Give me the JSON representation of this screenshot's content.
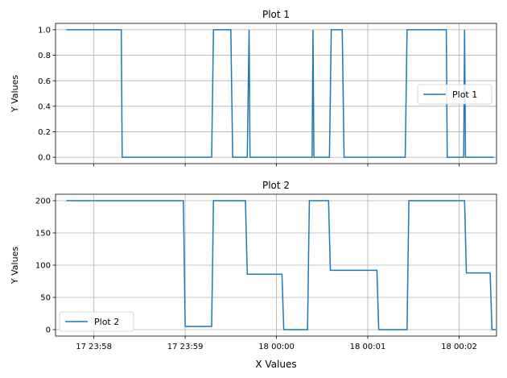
{
  "xlabel": "X Values",
  "colors": {
    "series": "#1f77b4",
    "grid": "#b0b0b0",
    "axes": "#000000"
  },
  "chart_data": [
    {
      "type": "line",
      "title": "Plot 1",
      "xlabel": "",
      "ylabel": "Y Values",
      "grid": true,
      "legend_position": "center-right",
      "xlim": [
        "17 23:57.58",
        "18 00:02.41"
      ],
      "ylim": [
        -0.05,
        1.05
      ],
      "x_ticks": [
        {
          "t": "17 23:58",
          "label": ""
        },
        {
          "t": "17 23:59",
          "label": ""
        },
        {
          "t": "18 00:00",
          "label": ""
        },
        {
          "t": "18 00:01",
          "label": ""
        },
        {
          "t": "18 00:02",
          "label": ""
        }
      ],
      "y_ticks": [
        0.0,
        0.2,
        0.4,
        0.6,
        0.8,
        1.0
      ],
      "y_tick_labels": [
        "0.0",
        "0.2",
        "0.4",
        "0.6",
        "0.8",
        "1.0"
      ],
      "series": [
        {
          "name": "Plot 1",
          "points": [
            {
              "t": "17 23:57.70",
              "y": 1
            },
            {
              "t": "17 23:58.30",
              "y": 1
            },
            {
              "t": "17 23:58.31",
              "y": 0
            },
            {
              "t": "17 23:59.29",
              "y": 0
            },
            {
              "t": "17 23:59.31",
              "y": 1
            },
            {
              "t": "17 23:59.50",
              "y": 1
            },
            {
              "t": "17 23:59.52",
              "y": 0
            },
            {
              "t": "17 23:59.68",
              "y": 0
            },
            {
              "t": "17 23:59.70",
              "y": 1
            },
            {
              "t": "17 23:59.71",
              "y": 0
            },
            {
              "t": "18 00:00.39",
              "y": 0
            },
            {
              "t": "18 00:00.40",
              "y": 1
            },
            {
              "t": "18 00:00.41",
              "y": 0
            },
            {
              "t": "18 00:00.58",
              "y": 0
            },
            {
              "t": "18 00:00.60",
              "y": 1
            },
            {
              "t": "18 00:00.72",
              "y": 1
            },
            {
              "t": "18 00:00.74",
              "y": 0
            },
            {
              "t": "18 00:01.41",
              "y": 0
            },
            {
              "t": "18 00:01.43",
              "y": 1
            },
            {
              "t": "18 00:01.86",
              "y": 1
            },
            {
              "t": "18 00:01.87",
              "y": 0
            },
            {
              "t": "18 00:02.05",
              "y": 0
            },
            {
              "t": "18 00:02.06",
              "y": 1
            },
            {
              "t": "18 00:02.07",
              "y": 0
            },
            {
              "t": "18 00:02.38",
              "y": 0
            }
          ]
        }
      ]
    },
    {
      "type": "line",
      "title": "Plot 2",
      "xlabel": "X Values",
      "ylabel": "Y Values",
      "grid": true,
      "legend_position": "bottom-left",
      "xlim": [
        "17 23:57.58",
        "18 00:02.41"
      ],
      "ylim": [
        -10,
        210
      ],
      "x_ticks": [
        {
          "t": "17 23:58",
          "label": "17 23:58"
        },
        {
          "t": "17 23:59",
          "label": "17 23:59"
        },
        {
          "t": "18 00:00",
          "label": "18 00:00"
        },
        {
          "t": "18 00:01",
          "label": "18 00:01"
        },
        {
          "t": "18 00:02",
          "label": "18 00:02"
        }
      ],
      "y_ticks": [
        0,
        50,
        100,
        150,
        200
      ],
      "y_tick_labels": [
        "0",
        "50",
        "100",
        "150",
        "200"
      ],
      "series": [
        {
          "name": "Plot 2",
          "points": [
            {
              "t": "17 23:57.70",
              "y": 200
            },
            {
              "t": "17 23:58.98",
              "y": 200
            },
            {
              "t": "17 23:59.00",
              "y": 5
            },
            {
              "t": "17 23:59.29",
              "y": 5
            },
            {
              "t": "17 23:59.31",
              "y": 200
            },
            {
              "t": "17 23:59.66",
              "y": 200
            },
            {
              "t": "17 23:59.68",
              "y": 86
            },
            {
              "t": "18 00:00.06",
              "y": 86
            },
            {
              "t": "18 00:00.08",
              "y": 0
            },
            {
              "t": "18 00:00.34",
              "y": 0
            },
            {
              "t": "18 00:00.36",
              "y": 200
            },
            {
              "t": "18 00:00.57",
              "y": 200
            },
            {
              "t": "18 00:00.59",
              "y": 92
            },
            {
              "t": "18 00:01.10",
              "y": 92
            },
            {
              "t": "18 00:01.12",
              "y": 0
            },
            {
              "t": "18 00:01.43",
              "y": 0
            },
            {
              "t": "18 00:01.45",
              "y": 200
            },
            {
              "t": "18 00:02.06",
              "y": 200
            },
            {
              "t": "18 00:02.08",
              "y": 88
            },
            {
              "t": "18 00:02.34",
              "y": 88
            },
            {
              "t": "18 00:02.36",
              "y": 0
            },
            {
              "t": "18 00:02.40",
              "y": 0
            }
          ]
        }
      ]
    }
  ]
}
